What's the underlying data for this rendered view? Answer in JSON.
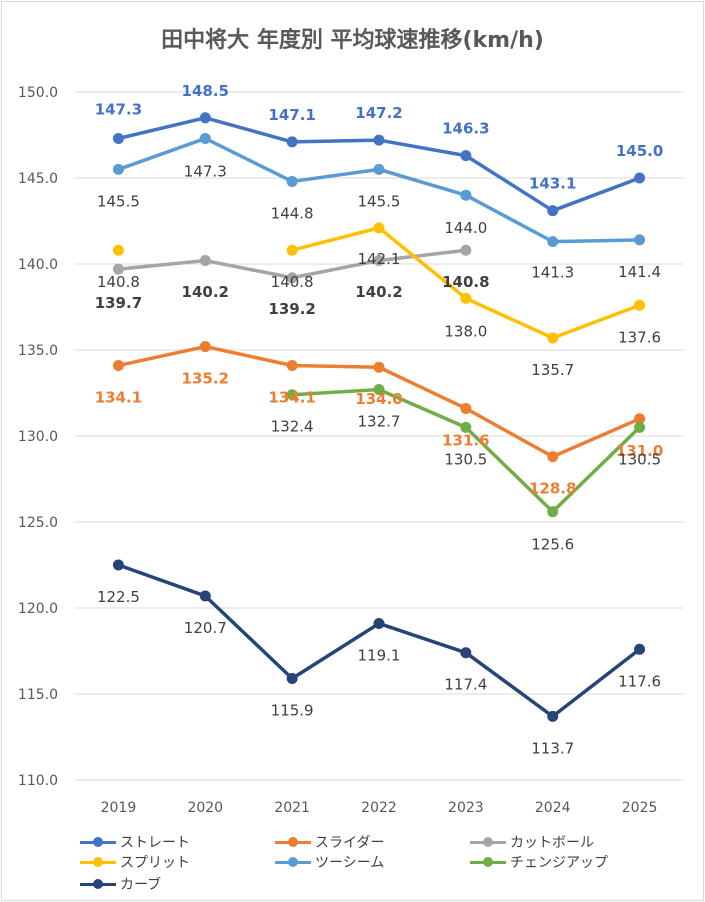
{
  "chart_data": {
    "type": "line",
    "title": "田中将大 年度別 平均球速推移(km/h)",
    "categories": [
      "2019",
      "2020",
      "2021",
      "2022",
      "2023",
      "2024",
      "2025"
    ],
    "ylim": [
      110,
      150
    ],
    "yticks": [
      "110.0",
      "115.0",
      "120.0",
      "125.0",
      "130.0",
      "135.0",
      "140.0",
      "145.0",
      "150.0"
    ],
    "grid": true,
    "legend_position": "bottom",
    "series": [
      {
        "name": "ストレート",
        "color": "#4472c4",
        "values": [
          147.3,
          148.5,
          147.1,
          147.2,
          146.3,
          143.1,
          145.0
        ],
        "labels": [
          "147.3",
          "148.5",
          "147.1",
          "147.2",
          "146.3",
          "143.1",
          "145.0"
        ]
      },
      {
        "name": "スライダー",
        "color": "#ed7d31",
        "values": [
          134.1,
          135.2,
          134.1,
          134.0,
          131.6,
          128.8,
          131.0
        ],
        "labels": [
          "134.1",
          "135.2",
          "134.1",
          "134.0",
          "131.6",
          "128.8",
          "131.0"
        ]
      },
      {
        "name": "カットボール",
        "color": "#a5a5a5",
        "values": [
          139.7,
          140.2,
          139.2,
          140.2,
          140.8,
          null,
          null
        ],
        "labels": [
          "139.7",
          "140.2",
          "139.2",
          "140.2",
          "140.8",
          "",
          ""
        ]
      },
      {
        "name": "スプリット",
        "color": "#ffc000",
        "values": [
          140.8,
          null,
          140.8,
          142.1,
          138.0,
          135.7,
          137.6
        ],
        "labels": [
          "140.8",
          "",
          "140.8",
          "142.1",
          "138.0",
          "135.7",
          "137.6"
        ]
      },
      {
        "name": "ツーシーム",
        "color": "#5b9bd5",
        "values": [
          145.5,
          147.3,
          144.8,
          145.5,
          144.0,
          141.3,
          141.4
        ],
        "labels": [
          "145.5",
          "147.3",
          "144.8",
          "145.5",
          "144.0",
          "141.3",
          "141.4"
        ]
      },
      {
        "name": "チェンジアップ",
        "color": "#70ad47",
        "values": [
          null,
          null,
          132.4,
          132.7,
          130.5,
          125.6,
          130.5
        ],
        "labels": [
          "",
          "",
          "132.4",
          "132.7",
          "130.5",
          "125.6",
          "130.5"
        ]
      },
      {
        "name": "カーブ",
        "color": "#264478",
        "values": [
          122.5,
          120.7,
          115.9,
          119.1,
          117.4,
          113.7,
          117.6
        ],
        "labels": [
          "122.5",
          "120.7",
          "115.9",
          "119.1",
          "117.4",
          "113.7",
          "117.6"
        ]
      }
    ]
  }
}
